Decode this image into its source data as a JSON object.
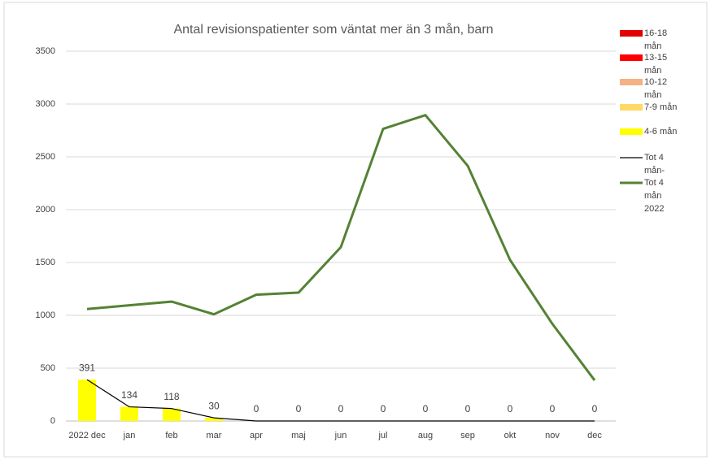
{
  "chart_data": {
    "type": "bar",
    "title": "Antal revisionspatienter som väntat mer än 3 mån, barn",
    "categories": [
      "2022 dec",
      "jan",
      "feb",
      "mar",
      "apr",
      "maj",
      "jun",
      "jul",
      "aug",
      "sep",
      "okt",
      "nov",
      "dec"
    ],
    "series": [
      {
        "name": "16-18 mån",
        "type": "bar",
        "color": "#e00000",
        "values": [
          0,
          0,
          0,
          0,
          0,
          0,
          0,
          0,
          0,
          0,
          0,
          0,
          0
        ]
      },
      {
        "name": "13-15 mån",
        "type": "bar",
        "color": "#ff0000",
        "values": [
          0,
          0,
          0,
          0,
          0,
          0,
          0,
          0,
          0,
          0,
          0,
          0,
          0
        ]
      },
      {
        "name": "10-12 mån",
        "type": "bar",
        "color": "#f4b183",
        "values": [
          0,
          0,
          0,
          0,
          0,
          0,
          0,
          0,
          0,
          0,
          0,
          0,
          0
        ]
      },
      {
        "name": "7-9 mån",
        "type": "bar",
        "color": "#ffd966",
        "values": [
          0,
          0,
          0,
          0,
          0,
          0,
          0,
          0,
          0,
          0,
          0,
          0,
          0
        ]
      },
      {
        "name": "4-6 mån",
        "type": "bar",
        "color": "#ffff00",
        "values": [
          391,
          134,
          118,
          30,
          0,
          0,
          0,
          0,
          0,
          0,
          0,
          0,
          0
        ]
      },
      {
        "name": "Tot 4 mån-",
        "type": "line",
        "color": "#000000",
        "labels": true,
        "values": [
          391,
          134,
          118,
          30,
          0,
          0,
          0,
          0,
          0,
          0,
          0,
          0,
          0
        ]
      },
      {
        "name": "Tot 4 mån 2022",
        "type": "line",
        "color": "#548235",
        "values": [
          1060,
          1095,
          1130,
          1010,
          1195,
          1215,
          1645,
          2765,
          2895,
          2415,
          1525,
          920,
          385
        ]
      }
    ],
    "ylim": [
      0,
      3500
    ],
    "yticks": [
      0,
      500,
      1000,
      1500,
      2000,
      2500,
      3000,
      3500
    ],
    "grid": true,
    "legend": "right"
  }
}
